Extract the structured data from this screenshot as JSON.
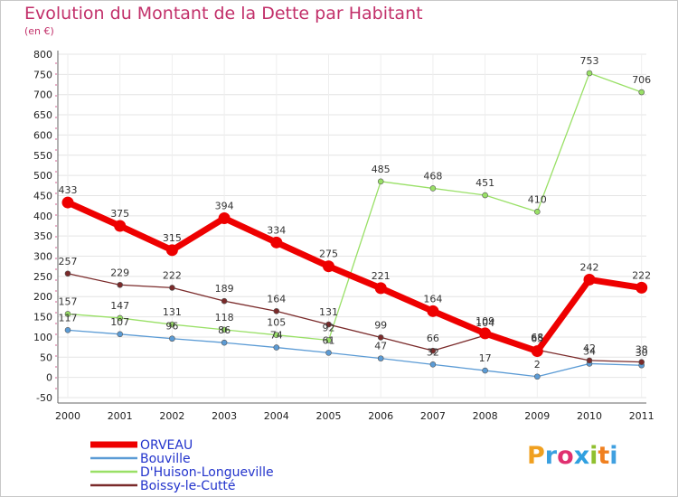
{
  "header": {
    "title": "Evolution du Montant de la Dette par Habitant",
    "subtitle": "(en €)"
  },
  "logo": {
    "letters": [
      "P",
      "r",
      "o",
      "x",
      "i",
      "t",
      "i"
    ],
    "colors": [
      "#f0a020",
      "#3aa0e0",
      "#e03070",
      "#30a0e0",
      "#90c030",
      "#f08020",
      "#40a0e0"
    ]
  },
  "chart_data": {
    "type": "line",
    "title": "Evolution du Montant de la Dette par Habitant",
    "subtitle": "(en €)",
    "xlabel": "",
    "ylabel": "",
    "categories": [
      "2000",
      "2001",
      "2002",
      "2003",
      "2004",
      "2005",
      "2006",
      "2007",
      "2008",
      "2009",
      "2010",
      "2011"
    ],
    "ylim": [
      -50,
      800
    ],
    "yticks": [
      -50,
      0,
      50,
      100,
      150,
      200,
      250,
      300,
      350,
      400,
      450,
      500,
      550,
      600,
      650,
      700,
      750,
      800
    ],
    "grid": true,
    "legend": "bottom-left",
    "series": [
      {
        "name": "ORVEAU",
        "color": "#ee0000",
        "values": [
          433,
          375,
          315,
          394,
          334,
          275,
          221,
          164,
          109,
          65,
          242,
          222
        ]
      },
      {
        "name": "Bouville",
        "color": "#5b9bd5",
        "values": [
          117,
          107,
          96,
          86,
          74,
          61,
          47,
          32,
          17,
          2,
          34,
          30
        ]
      },
      {
        "name": "D'Huison-Longueville",
        "color": "#99e066",
        "values": [
          157,
          147,
          131,
          118,
          105,
          92,
          485,
          468,
          451,
          410,
          753,
          706
        ]
      },
      {
        "name": "Boissy-le-Cutté",
        "color": "#7a2a2a",
        "values": [
          257,
          229,
          222,
          189,
          164,
          131,
          99,
          66,
          104,
          68,
          42,
          38
        ]
      }
    ]
  }
}
